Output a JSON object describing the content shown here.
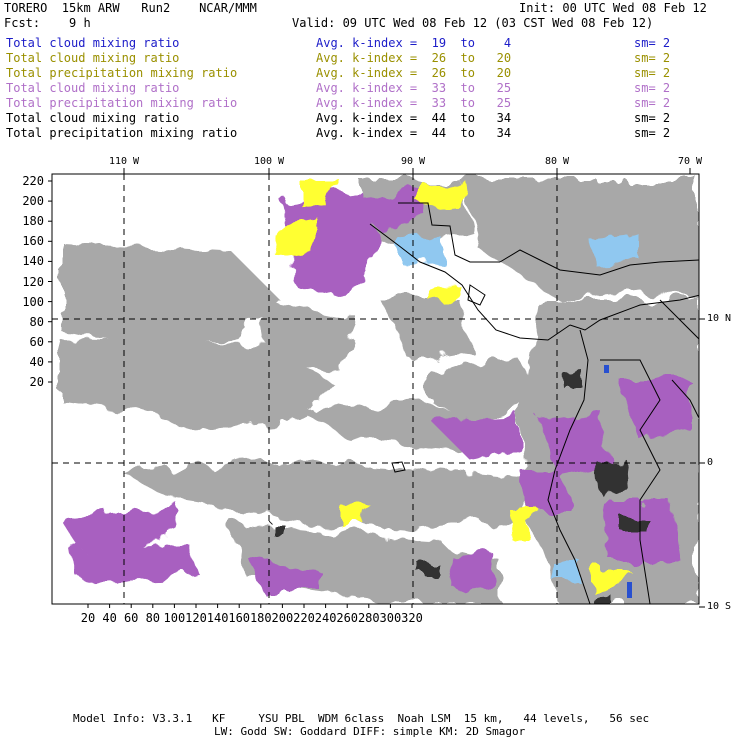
{
  "header": {
    "model": "TORERO  15km ARW   Run2    NCAR/MMM",
    "init": "Init: 00 UTC Wed 08 Feb 12",
    "fcst": "Fcst:    9 h",
    "valid": "Valid: 09 UTC Wed 08 Feb 12 (03 CST Wed 08 Feb 12)"
  },
  "fields": [
    {
      "name": "Total cloud mixing ratio",
      "kindex": "Avg. k-index =  19  to    4",
      "sm": "sm= 2",
      "color": "#1c1cc8"
    },
    {
      "name": "Total cloud mixing ratio",
      "kindex": "Avg. k-index =  26  to   20",
      "sm": "sm= 2",
      "color": "#9a9000"
    },
    {
      "name": "Total precipitation mixing ratio",
      "kindex": "Avg. k-index =  26  to   20",
      "sm": "sm= 2",
      "color": "#9a9000"
    },
    {
      "name": "Total cloud mixing ratio",
      "kindex": "Avg. k-index =  33  to   25",
      "sm": "sm= 2",
      "color": "#b070c8"
    },
    {
      "name": "Total precipitation mixing ratio",
      "kindex": "Avg. k-index =  33  to   25",
      "sm": "sm= 2",
      "color": "#b070c8"
    },
    {
      "name": "Total cloud mixing ratio",
      "kindex": "Avg. k-index =  44  to   34",
      "sm": "sm= 2",
      "color": "#000000"
    },
    {
      "name": "Total precipitation mixing ratio",
      "kindex": "Avg. k-index =  44  to   34",
      "sm": "sm= 2",
      "color": "#000000"
    }
  ],
  "map": {
    "lon_labels": [
      "110 W",
      "100 W",
      "90 W",
      "80 W",
      "70 W"
    ],
    "lat_labels": [
      "10 N",
      "0",
      "10 S"
    ],
    "y_ticks": [
      "220",
      "200",
      "180",
      "160",
      "140",
      "120",
      "100",
      "80",
      "60",
      "40",
      "20"
    ],
    "x_ticks": [
      "20",
      "40",
      "60",
      "80",
      "100",
      "120",
      "140",
      "160",
      "180",
      "200",
      "220",
      "240",
      "260",
      "280",
      "300",
      "320"
    ],
    "colors": {
      "gray": "#a8a8a8",
      "dark": "#303030",
      "purple": "#a860c0",
      "yellow": "#ffff30",
      "blue": "#90c8f0",
      "deepblue": "#2850d0"
    }
  },
  "footer": {
    "line1": "Model Info: V3.3.1   KF     YSU PBL  WDM 6class  Noah LSM  15 km,   44 levels,   56 sec",
    "line2": "LW: Godd SW: Goddard DIFF: simple KM: 2D Smagor"
  }
}
